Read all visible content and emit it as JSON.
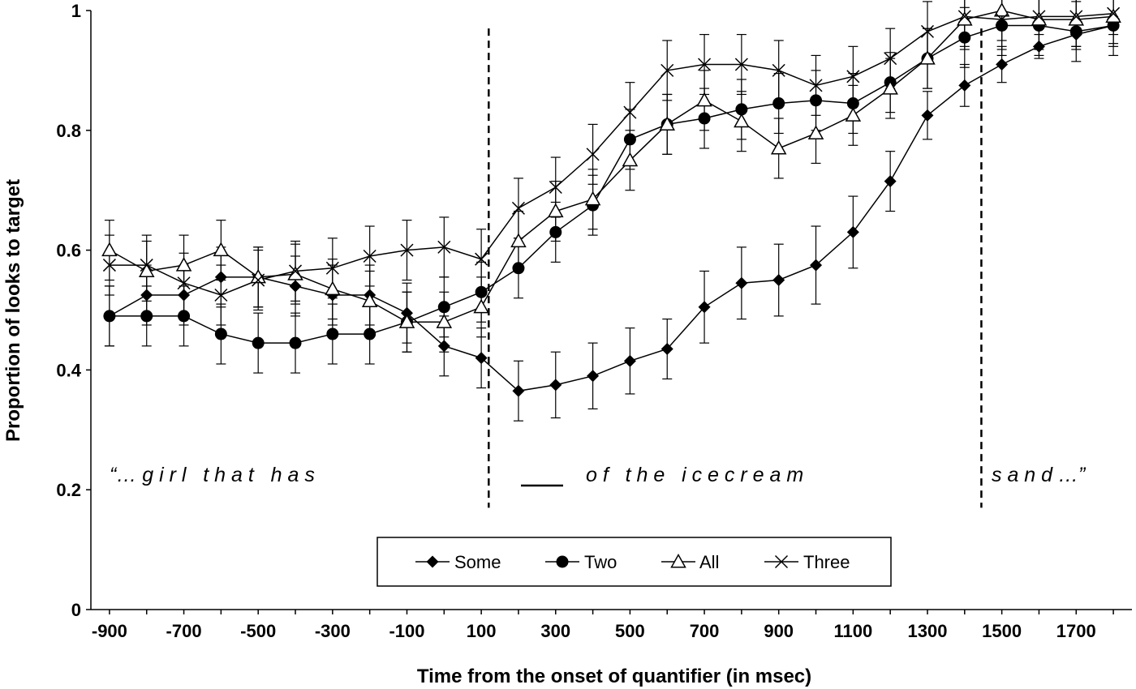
{
  "chart_data": {
    "type": "line",
    "title": "",
    "xlabel": "Time from the onset of quantifier (in msec)",
    "ylabel": "Proportion of looks to target",
    "xlim": [
      -950,
      1850
    ],
    "ylim": [
      0,
      1
    ],
    "x_tick_labels": [
      "-900",
      "-700",
      "-500",
      "-300",
      "-100",
      "100",
      "300",
      "500",
      "700",
      "900",
      "1100",
      "1300",
      "1500",
      "1700"
    ],
    "y_tick_labels": [
      "0",
      "0.2",
      "0.4",
      "0.6",
      "0.8",
      "1"
    ],
    "x": [
      -900,
      -800,
      -700,
      -600,
      -500,
      -400,
      -300,
      -200,
      -100,
      0,
      100,
      200,
      300,
      400,
      500,
      600,
      700,
      800,
      900,
      1000,
      1100,
      1200,
      1300,
      1400,
      1500,
      1600,
      1700,
      1800
    ],
    "series": [
      {
        "name": "Some",
        "marker": "diamond",
        "values": [
          0.49,
          0.525,
          0.525,
          0.555,
          0.555,
          0.54,
          0.525,
          0.525,
          0.495,
          0.44,
          0.42,
          0.365,
          0.375,
          0.39,
          0.415,
          0.435,
          0.505,
          0.545,
          0.55,
          0.575,
          0.63,
          0.715,
          0.825,
          0.875,
          0.91,
          0.94,
          0.96,
          0.975
        ],
        "errors": [
          0.05,
          0.05,
          0.05,
          0.05,
          0.05,
          0.05,
          0.05,
          0.05,
          0.05,
          0.05,
          0.05,
          0.05,
          0.055,
          0.055,
          0.055,
          0.05,
          0.06,
          0.06,
          0.06,
          0.065,
          0.06,
          0.05,
          0.04,
          0.035,
          0.03,
          0.02,
          0.02,
          0.015
        ]
      },
      {
        "name": "Two",
        "marker": "circle",
        "values": [
          0.49,
          0.49,
          0.49,
          0.46,
          0.445,
          0.445,
          0.46,
          0.46,
          0.48,
          0.505,
          0.53,
          0.57,
          0.63,
          0.675,
          0.785,
          0.81,
          0.82,
          0.835,
          0.845,
          0.85,
          0.845,
          0.88,
          0.92,
          0.955,
          0.975,
          0.975,
          0.965,
          0.975
        ]
      },
      {
        "name": "All",
        "marker": "triangle",
        "values": [
          0.6,
          0.565,
          0.575,
          0.6,
          0.555,
          0.56,
          0.535,
          0.515,
          0.48,
          0.48,
          0.505,
          0.615,
          0.665,
          0.685,
          0.75,
          0.81,
          0.85,
          0.815,
          0.77,
          0.795,
          0.825,
          0.87,
          0.92,
          0.985,
          1.0,
          0.985,
          0.985,
          0.99
        ]
      },
      {
        "name": "Three",
        "marker": "x",
        "values": [
          0.575,
          0.575,
          0.545,
          0.525,
          0.55,
          0.565,
          0.57,
          0.59,
          0.6,
          0.605,
          0.585,
          0.67,
          0.705,
          0.76,
          0.83,
          0.9,
          0.91,
          0.91,
          0.9,
          0.875,
          0.89,
          0.92,
          0.965,
          0.99,
          0.985,
          0.99,
          0.99,
          0.995
        ]
      }
    ],
    "error_bar": 0.05,
    "dashed_lines_x": [
      120,
      1445
    ],
    "grid": false,
    "legend_position": "bottom-center",
    "annotations": {
      "phrase_1": "“… g i r l   t h a t   h a s",
      "phrase_2": "o f   t h e   i c e c r e a m",
      "phrase_3": "s a n d …”"
    }
  },
  "colors": {
    "line": "#000000",
    "background": "#ffffff",
    "open_marker_fill": "#ffffff"
  }
}
